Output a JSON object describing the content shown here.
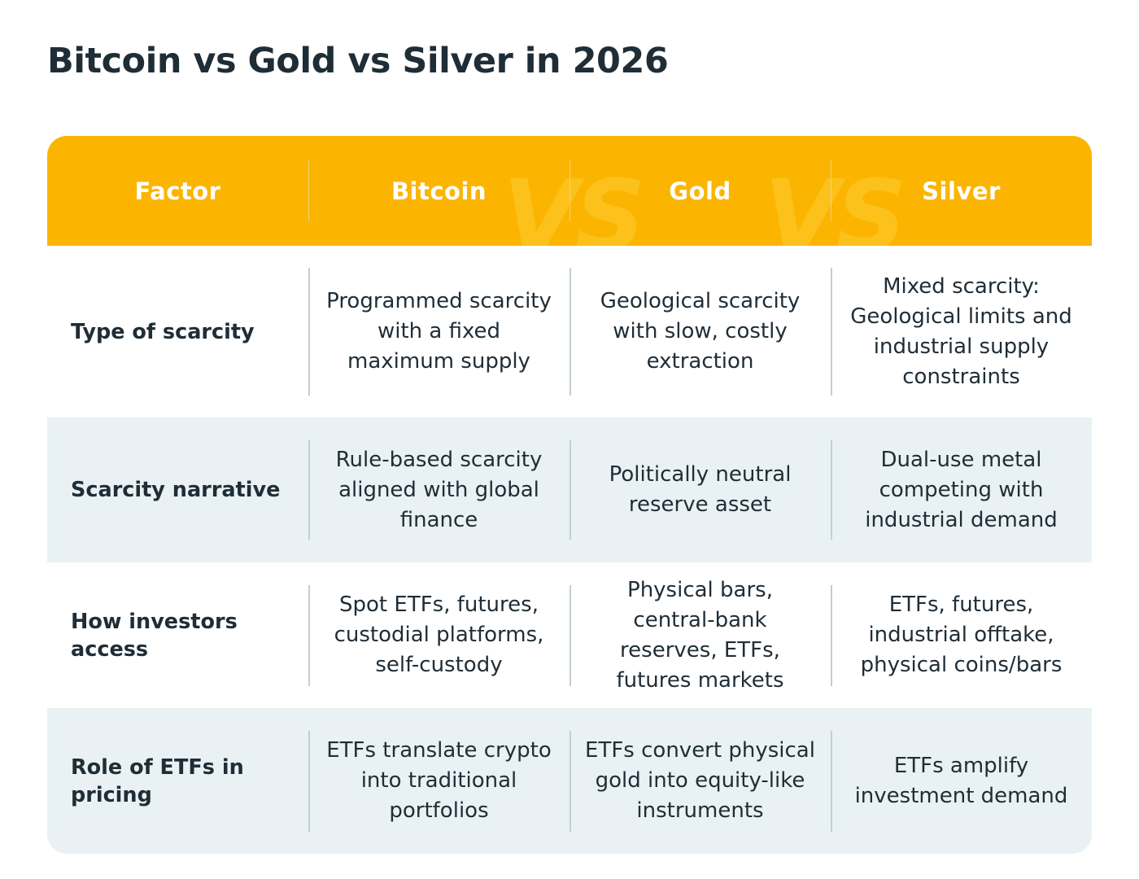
{
  "title": "Bitcoin vs Gold vs Silver in 2026",
  "header": {
    "columns": [
      "Factor",
      "Bitcoin",
      "Gold",
      "Silver"
    ],
    "vs_marks": [
      "VS",
      "VS"
    ]
  },
  "colors": {
    "header_bg": "#fbb500",
    "shaded_row_bg": "#e9f1f4",
    "text": "#1f2d36"
  },
  "rows": [
    {
      "label": "Type of scarcity",
      "bitcoin": "Programmed scarcity with a fixed maximum supply",
      "gold": "Geological scarcity with slow, costly extraction",
      "silver": "Mixed scarcity: Geological limits and industrial supply constraints"
    },
    {
      "label": "Scarcity narrative",
      "bitcoin": "Rule-based scarcity aligned with global finance",
      "gold": "Politically neutral reserve asset",
      "silver": "Dual-use metal competing with industrial demand"
    },
    {
      "label": "How investors access",
      "bitcoin": "Spot ETFs, futures, custodial platforms, self-custody",
      "gold": "Physical bars, central-bank reserves, ETFs, futures markets",
      "silver": "ETFs, futures, industrial offtake, physical coins/bars"
    },
    {
      "label": "Role of ETFs in pricing",
      "bitcoin": "ETFs translate crypto into traditional portfolios",
      "gold": "ETFs convert physical gold into equity-like instruments",
      "silver": "ETFs amplify investment demand"
    }
  ]
}
